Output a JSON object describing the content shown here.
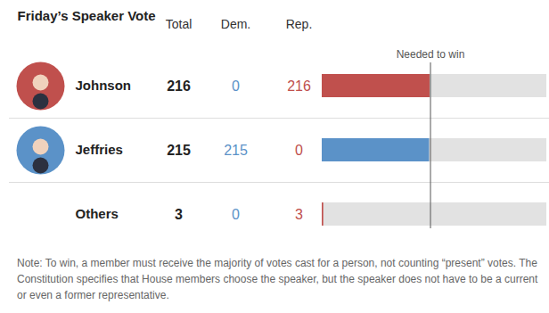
{
  "chart_data": {
    "type": "bar",
    "orientation": "horizontal",
    "stacked": true,
    "tick_labels": false,
    "title": "Friday’s Speaker Vote",
    "categories": [
      "Johnson",
      "Jeffries",
      "Others"
    ],
    "total_label": "Total",
    "total": [
      216,
      215,
      3
    ],
    "series": [
      {
        "name": "Dem.",
        "color": "#5b92c8",
        "values": [
          0,
          215,
          0
        ]
      },
      {
        "name": "Rep.",
        "color": "#c0504d",
        "values": [
          216,
          0,
          3
        ]
      }
    ],
    "photo": [
      true,
      true,
      false
    ],
    "threshold": {
      "label": "Needed to win",
      "value": 217
    },
    "xlim": [
      0,
      450
    ],
    "note": "Note: To win, a member must receive the majority of votes cast for a person, not counting “present” votes. The Constitution specifies that House members choose the speaker, but the speaker does not have to be a current or even a former representative."
  }
}
